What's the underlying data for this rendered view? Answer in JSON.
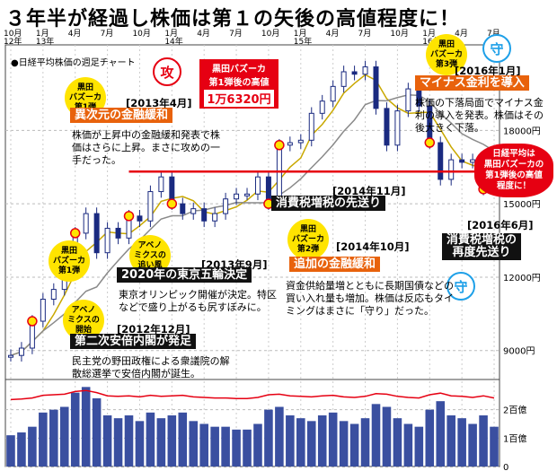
{
  "headline": "３年半が経過し株価は第１の矢後の高値程度に！",
  "subtitle": "●日経平均株価の週足チャート",
  "year_labels": [
    "12年",
    "13年",
    "14年",
    "15年",
    "16年"
  ],
  "month_labels": [
    "10月",
    "1月",
    "4月",
    "7月",
    "10月",
    "1月",
    "4月",
    "7月",
    "10月",
    "1月",
    "4月",
    "7月",
    "10月",
    "1月",
    "4月",
    "7月"
  ],
  "price_axis": [
    "18000円",
    "15000円",
    "12000円",
    "9000円"
  ],
  "volume_axis": [
    "2百億",
    "1百億",
    "0"
  ],
  "bubbles": {
    "b1": "黒田\nバズーカ\n第1弾",
    "b2": "黒田\nバズーカ\n第2弾",
    "b3": "黒田\nバズーカ\n第3弾",
    "abe1": "アベノ\nミクスの\n開始",
    "abe2": "アベノ\nミクスの\n追い風"
  },
  "peak_box": {
    "line1": "黒田バズーカ",
    "line2": "第1弾後の高値",
    "value": "1万6320円"
  },
  "burst_text": "日経平均は\n黒田バズーカの\n第1弾後の高値\n程度に！",
  "seals": {
    "attack": "攻",
    "defend": "守"
  },
  "annotations": {
    "a2013_04": {
      "date": "[2013年4月]",
      "title": "異次元の金融緩和",
      "body": "株価が上昇中の金融緩和発表で株価はさらに上昇。まさに攻めの一手だった。"
    },
    "a2013_09": {
      "date": "[2013年9月]",
      "title": "2020年の東京五輪決定",
      "body": "東京オリンピック開催が決定。特区などで盛り上がるも尻すぼみに。"
    },
    "a2012_12": {
      "date": "[2012年12月]",
      "title": "第二次安倍内閣が発足",
      "body": "民主党の野田政権による衆議院の解散総選挙で安倍内閣が誕生。"
    },
    "a2014_11": {
      "date": "[2014年11月]",
      "title": "消費税増税の先送り"
    },
    "a2014_10": {
      "date": "[2014年10月]",
      "title": "追加の金融緩和",
      "body": "資金供給量増とともに長期国債などの買い入れ量も増加。株価は反応もタイミングはまさに「守り」だった。"
    },
    "a2016_01": {
      "date": "[2016年1月]",
      "title": "マイナス金利を導入",
      "body": "株価の下落局面でマイナス金利の導入を発表。株価はその後大きく下落。"
    },
    "a2016_06": {
      "date": "[2016年6月]",
      "title": "消費税増税の\n再度先送り"
    }
  },
  "chart_data": {
    "type": "line",
    "x": [
      "2012-10",
      "2012-11",
      "2012-12",
      "2013-01",
      "2013-02",
      "2013-03",
      "2013-04",
      "2013-05",
      "2013-06",
      "2013-07",
      "2013-08",
      "2013-09",
      "2013-10",
      "2013-11",
      "2013-12",
      "2014-01",
      "2014-02",
      "2014-03",
      "2014-04",
      "2014-05",
      "2014-06",
      "2014-07",
      "2014-08",
      "2014-09",
      "2014-10",
      "2014-11",
      "2014-12",
      "2015-01",
      "2015-02",
      "2015-03",
      "2015-04",
      "2015-05",
      "2015-06",
      "2015-07",
      "2015-08",
      "2015-09",
      "2015-10",
      "2015-11",
      "2015-12",
      "2016-01",
      "2016-02",
      "2016-03",
      "2016-04",
      "2016-05",
      "2016-06",
      "2016-07"
    ],
    "price": [
      8800,
      9100,
      10200,
      11100,
      11500,
      12300,
      13800,
      14600,
      13000,
      14000,
      13600,
      14500,
      14300,
      15500,
      16100,
      15000,
      14600,
      14800,
      14300,
      14600,
      15200,
      15400,
      15400,
      16100,
      15000,
      17400,
      17500,
      17600,
      18700,
      19200,
      19800,
      20400,
      20300,
      20600,
      18900,
      17400,
      18800,
      19700,
      19000,
      17500,
      16000,
      16800,
      16700,
      16800,
      15600,
      16300
    ],
    "volume": [
      1.1,
      1.2,
      1.4,
      1.9,
      2.0,
      2.1,
      2.6,
      2.8,
      2.4,
      1.8,
      1.7,
      1.8,
      1.6,
      1.9,
      1.7,
      1.8,
      1.9,
      1.6,
      1.5,
      1.4,
      1.4,
      1.3,
      1.3,
      1.5,
      2.0,
      2.1,
      1.8,
      1.7,
      1.6,
      1.8,
      1.9,
      1.6,
      1.5,
      1.7,
      2.2,
      2.1,
      1.7,
      1.5,
      1.4,
      2.0,
      2.3,
      1.8,
      1.7,
      1.5,
      1.8,
      1.4
    ],
    "peak_level": 16320,
    "ylim": [
      8000,
      21500
    ],
    "volume_lim": [
      0,
      3
    ]
  },
  "colors": {
    "price": "#1a2a80",
    "ma": "#c9a800",
    "ma2": "#8a8a8a",
    "volume": "#3a4fa0",
    "ratio": "#e60012",
    "accent": "#e8620c",
    "peak": "#e60012"
  }
}
